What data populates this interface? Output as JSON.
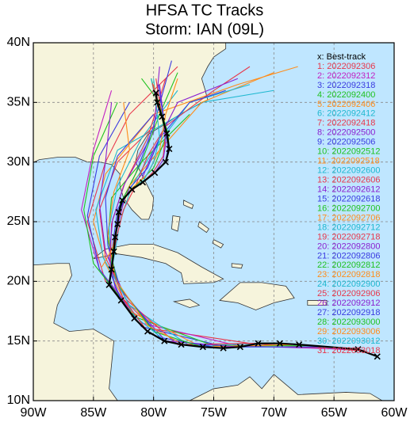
{
  "map": {
    "title": "HFSA TC Tracks",
    "subtitle": "Storm: IAN (09L)",
    "xlim": [
      -90,
      -60
    ],
    "ylim": [
      10,
      40
    ],
    "xticks": [
      {
        "value": -90,
        "label": "90W"
      },
      {
        "value": -85,
        "label": "85W"
      },
      {
        "value": -80,
        "label": "80W"
      },
      {
        "value": -75,
        "label": "75W"
      },
      {
        "value": -70,
        "label": "70W"
      },
      {
        "value": -65,
        "label": "65W"
      },
      {
        "value": -60,
        "label": "60W"
      }
    ],
    "yticks": [
      {
        "value": 10,
        "label": "10N"
      },
      {
        "value": 15,
        "label": "15N"
      },
      {
        "value": 20,
        "label": "20N"
      },
      {
        "value": 25,
        "label": "25N"
      },
      {
        "value": 30,
        "label": "30N"
      },
      {
        "value": 35,
        "label": "35N"
      },
      {
        "value": 40,
        "label": "40N"
      }
    ],
    "grid": true,
    "best_track": {
      "name": "x: Best-track",
      "color": "#000000",
      "lon": [
        -61.4,
        -63.0,
        -67.9,
        -69.5,
        -71.3,
        -72.8,
        -74.2,
        -75.9,
        -77.7,
        -79.1,
        -80.5,
        -81.6,
        -82.7,
        -83.7,
        -83.5,
        -83.3,
        -83.2,
        -83.0,
        -82.9,
        -82.6,
        -81.8,
        -80.9,
        -79.9,
        -79.0,
        -78.7,
        -78.9,
        -79.3,
        -79.7,
        -79.8
      ],
      "lat": [
        13.7,
        14.3,
        14.7,
        14.8,
        14.8,
        14.5,
        14.4,
        14.5,
        14.7,
        15.0,
        15.8,
        16.9,
        18.4,
        19.7,
        21.0,
        22.5,
        23.7,
        24.8,
        25.8,
        26.8,
        27.7,
        28.3,
        29.1,
        30.0,
        31.1,
        32.4,
        33.8,
        35.0,
        35.8
      ]
    },
    "tracks": [
      {
        "name": "1: 2022092306",
        "color": "#e8364a",
        "lon": [
          -63,
          -72,
          -80,
          -84,
          -85.5,
          -84,
          -82,
          -78
        ],
        "lat": [
          14.2,
          14.8,
          16,
          20,
          25,
          30,
          34,
          38
        ]
      },
      {
        "name": "2: 2022092312",
        "color": "#c21fc2",
        "lon": [
          -64,
          -73,
          -81,
          -84.5,
          -86,
          -85,
          -83.5
        ],
        "lat": [
          14.3,
          14.6,
          16.5,
          21,
          26,
          31,
          36
        ]
      },
      {
        "name": "3: 2022092318",
        "color": "#3a3ae0",
        "lon": [
          -65.5,
          -74,
          -81,
          -84.5,
          -85.5,
          -84.5,
          -82
        ],
        "lat": [
          14.5,
          14.5,
          16.2,
          21,
          25.5,
          30.5,
          35
        ]
      },
      {
        "name": "4: 2022092400",
        "color": "#1fc21f",
        "lon": [
          -67,
          -75,
          -81.5,
          -85,
          -85.8,
          -85,
          -83
        ],
        "lat": [
          14.6,
          14.6,
          17,
          21.5,
          26,
          30.5,
          35
        ]
      },
      {
        "name": "5: 2022092406",
        "color": "#ff8c1a",
        "lon": [
          -68.5,
          -76,
          -82,
          -84,
          -85,
          -84,
          -80,
          -73,
          -68
        ],
        "lat": [
          14.7,
          14.5,
          17.5,
          21.5,
          25,
          29,
          34,
          36.5,
          38
        ]
      },
      {
        "name": "6: 2022092412",
        "color": "#1fb8d0",
        "lon": [
          -70,
          -77,
          -82,
          -84.2,
          -84.8,
          -83,
          -76,
          -70
        ],
        "lat": [
          14.8,
          14.6,
          18,
          22,
          26,
          31,
          35,
          36
        ]
      },
      {
        "name": "7: 2022092418",
        "color": "#e8364a",
        "lon": [
          -71.5,
          -78,
          -82.3,
          -84,
          -84.5,
          -83,
          -80
        ],
        "lat": [
          14.8,
          14.7,
          18.5,
          22,
          26,
          30,
          33
        ]
      },
      {
        "name": "8: 2022092500",
        "color": "#8a1fd0",
        "lon": [
          -73,
          -79,
          -82.5,
          -84,
          -84.5,
          -84,
          -83.5
        ],
        "lat": [
          14.5,
          15,
          19,
          22.5,
          26.5,
          30,
          35
        ]
      },
      {
        "name": "9: 2022092506",
        "color": "#3a3ae0",
        "lon": [
          -74.5,
          -79.5,
          -82.8,
          -83.8,
          -84,
          -83,
          -80
        ],
        "lat": [
          14.4,
          15.3,
          19.5,
          23,
          27,
          30.5,
          34
        ]
      },
      {
        "name": "10: 2022092512",
        "color": "#1fc21f",
        "lon": [
          -76,
          -80,
          -83,
          -83.8,
          -83.5,
          -81,
          -77
        ],
        "lat": [
          14.5,
          15.8,
          19.8,
          23.5,
          27,
          30,
          34
        ]
      },
      {
        "name": "11: 2022092518",
        "color": "#ff8c1a",
        "lon": [
          -77.5,
          -80.5,
          -83.2,
          -83.8,
          -83.3,
          -82,
          -82.5
        ],
        "lat": [
          14.7,
          16.3,
          20.2,
          24,
          27.5,
          31,
          35
        ]
      },
      {
        "name": "12: 2022092600",
        "color": "#1fb8d0",
        "lon": [
          -79,
          -81.5,
          -83.5,
          -83.7,
          -83,
          -81,
          -78
        ],
        "lat": [
          15,
          17,
          20.8,
          24.5,
          28,
          32,
          36
        ]
      },
      {
        "name": "13: 2022092606",
        "color": "#e8364a",
        "lon": [
          -80.5,
          -82.5,
          -83.6,
          -83.5,
          -82.5,
          -80.5,
          -79
        ],
        "lat": [
          15.8,
          18.5,
          21.5,
          24.8,
          28,
          32,
          37
        ]
      },
      {
        "name": "14: 2022092612",
        "color": "#8a1fd0",
        "lon": [
          -81.6,
          -83.2,
          -83.7,
          -83.4,
          -82.4,
          -80,
          -79.5
        ],
        "lat": [
          16.9,
          19.5,
          22,
          25.2,
          28.2,
          32.5,
          38
        ]
      },
      {
        "name": "15: 2022092618",
        "color": "#3a3ae0",
        "lon": [
          -82.7,
          -83.5,
          -83.4,
          -83,
          -81.5,
          -80,
          -78.5
        ],
        "lat": [
          18.4,
          20.5,
          23,
          26,
          29,
          33,
          38.5
        ]
      },
      {
        "name": "16: 2022092700",
        "color": "#1fc21f",
        "lon": [
          -83.7,
          -83.5,
          -83.2,
          -82.5,
          -81,
          -79.5,
          -78
        ],
        "lat": [
          19.7,
          21.5,
          24,
          27,
          30,
          34,
          37.5
        ]
      },
      {
        "name": "17: 2022092706",
        "color": "#ff8c1a",
        "lon": [
          -84.3,
          -83.4,
          -83,
          -82,
          -79.5,
          -76,
          -70
        ],
        "lat": [
          21.2,
          22.8,
          25,
          28,
          31,
          35,
          37.5
        ]
      },
      {
        "name": "18: 2022092712",
        "color": "#1fb8d0",
        "lon": [
          -83.5,
          -83.2,
          -82.8,
          -81.8,
          -80,
          -77,
          -72
        ],
        "lat": [
          21,
          22.5,
          25,
          28,
          31,
          35,
          36.5
        ]
      },
      {
        "name": "19: 2022092718",
        "color": "#e8364a",
        "lon": [
          -83.3,
          -83,
          -82.5,
          -81.5,
          -80.5,
          -79,
          -75,
          -72
        ],
        "lat": [
          22.5,
          24,
          26,
          28,
          30.5,
          33,
          36,
          38
        ]
      },
      {
        "name": "20: 2022092800",
        "color": "#8a1fd0",
        "lon": [
          -83.2,
          -82.9,
          -82.4,
          -81,
          -80,
          -78,
          -73
        ],
        "lat": [
          23.7,
          25,
          27,
          28.5,
          31,
          35,
          37
        ]
      },
      {
        "name": "21: 2022092806",
        "color": "#3a3ae0",
        "lon": [
          -83,
          -82.8,
          -82,
          -80.5,
          -79.5,
          -77,
          -74
        ],
        "lat": [
          24.8,
          26,
          27.8,
          29.5,
          32,
          35,
          36
        ]
      },
      {
        "name": "22: 2022092812",
        "color": "#1fc21f",
        "lon": [
          -82.9,
          -82.7,
          -81.5,
          -80,
          -79,
          -79.5,
          -81
        ],
        "lat": [
          25.8,
          26.8,
          28,
          29.5,
          32,
          35,
          37
        ]
      },
      {
        "name": "23: 2022092818",
        "color": "#ff8c1a",
        "lon": [
          -82.6,
          -81.8,
          -80.5,
          -79.5,
          -79,
          -78
        ],
        "lat": [
          26.8,
          27.8,
          29,
          31,
          34,
          37
        ]
      },
      {
        "name": "24: 2022092900",
        "color": "#1fb8d0",
        "lon": [
          -81.8,
          -80.8,
          -80,
          -79.5,
          -79.8,
          -80
        ],
        "lat": [
          27.7,
          28.5,
          30,
          32,
          35,
          37
        ]
      },
      {
        "name": "25: 2022092906",
        "color": "#e8364a",
        "lon": [
          -80.9,
          -80,
          -79.2,
          -79,
          -79.5,
          -79.8
        ],
        "lat": [
          28.3,
          29.2,
          30.5,
          32.5,
          35,
          37
        ]
      },
      {
        "name": "26: 2022092912",
        "color": "#8a1fd0",
        "lon": [
          -79.9,
          -79.2,
          -79,
          -79.2,
          -79.5
        ],
        "lat": [
          29.1,
          30.2,
          31.5,
          34,
          36.5
        ]
      },
      {
        "name": "27: 2022092918",
        "color": "#3a3ae0",
        "lon": [
          -79,
          -78.8,
          -79,
          -79.3,
          -79.6
        ],
        "lat": [
          30,
          31.2,
          32.5,
          34.5,
          36.5
        ]
      },
      {
        "name": "28: 2022093000",
        "color": "#1fc21f",
        "lon": [
          -78.7,
          -78.8,
          -79.3,
          -79.8,
          -80.2
        ],
        "lat": [
          31.1,
          32.4,
          34,
          35.5,
          37
        ]
      },
      {
        "name": "29: 2022093006",
        "color": "#ff8c1a",
        "lon": [
          -78.9,
          -79.3,
          -79.8,
          -80
        ],
        "lat": [
          32.4,
          33.8,
          35.2,
          36.5
        ]
      },
      {
        "name": "30: 2022093012",
        "color": "#1fb8d0",
        "lon": [
          -79.3,
          -79.7,
          -80,
          -80.2
        ],
        "lat": [
          33.8,
          35,
          36,
          37
        ]
      },
      {
        "name": "31: 2022093018",
        "color": "#e8364a",
        "lon": [
          -79.7,
          -79.9,
          -80.1
        ],
        "lat": [
          35,
          35.8,
          36.6
        ]
      }
    ]
  }
}
